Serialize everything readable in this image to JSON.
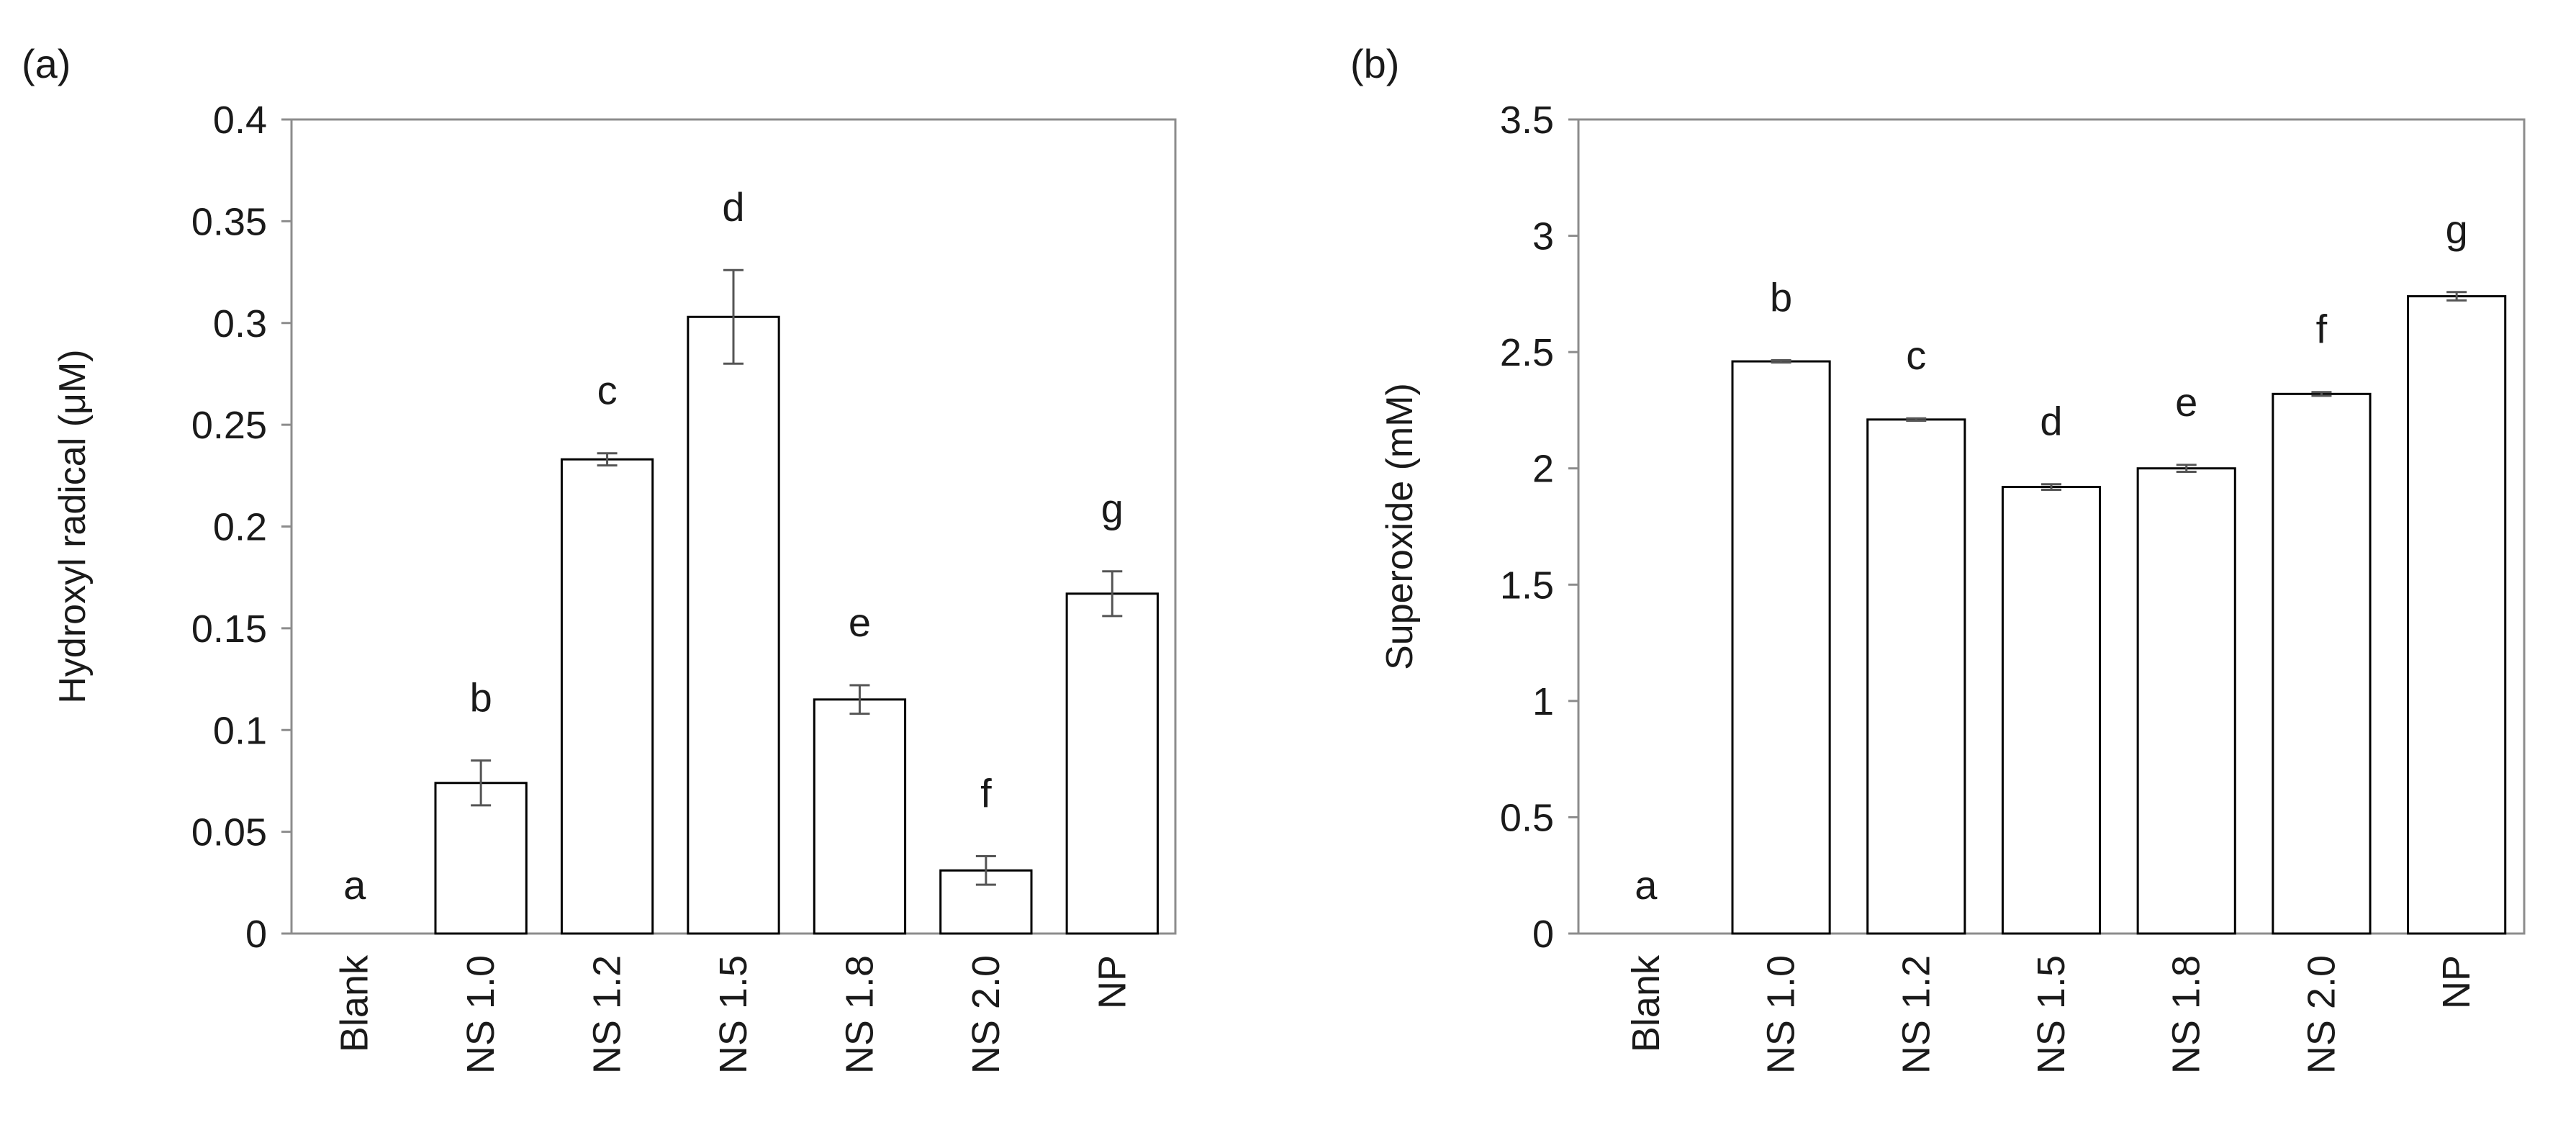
{
  "chart_data": [
    {
      "type": "bar",
      "panel_label": "(a)",
      "ylabel": "Hydroxyl radical (μM)",
      "xlabel": "",
      "ylim": [
        0,
        0.4
      ],
      "yticks": [
        0,
        0.05,
        0.1,
        0.15,
        0.2,
        0.25,
        0.3,
        0.35,
        0.4
      ],
      "ytick_labels": [
        "0",
        "0.05",
        "0.1",
        "0.15",
        "0.2",
        "0.25",
        "0.3",
        "0.35",
        "0.4"
      ],
      "categories": [
        "Blank",
        "NS 1.0",
        "NS 1.2",
        "NS 1.5",
        "NS 1.8",
        "NS 2.0",
        "NP"
      ],
      "values": [
        0,
        0.074,
        0.233,
        0.303,
        0.115,
        0.031,
        0.167
      ],
      "errors": [
        0,
        0.011,
        0.003,
        0.023,
        0.007,
        0.007,
        0.011
      ],
      "significance_letters": [
        "a",
        "b",
        "c",
        "d",
        "e",
        "f",
        "g"
      ],
      "grid": false,
      "bar_fill": "#ffffff",
      "bar_stroke": "#000000"
    },
    {
      "type": "bar",
      "panel_label": "(b)",
      "ylabel": "Superoxide (mM)",
      "xlabel": "",
      "ylim": [
        0,
        3.5
      ],
      "yticks": [
        0,
        0.5,
        1,
        1.5,
        2,
        2.5,
        3,
        3.5
      ],
      "ytick_labels": [
        "0",
        "0.5",
        "1",
        "1.5",
        "2",
        "2.5",
        "3",
        "3.5"
      ],
      "categories": [
        "Blank",
        "NS 1.0",
        "NS 1.2",
        "NS 1.5",
        "NS 1.8",
        "NS 2.0",
        "NP"
      ],
      "values": [
        0,
        2.46,
        2.21,
        1.92,
        2.0,
        2.32,
        2.74
      ],
      "errors": [
        0,
        0.005,
        0.005,
        0.012,
        0.015,
        0.008,
        0.018
      ],
      "significance_letters": [
        "a",
        "b",
        "c",
        "d",
        "e",
        "f",
        "g"
      ],
      "grid": false,
      "bar_fill": "#ffffff",
      "bar_stroke": "#000000"
    }
  ]
}
